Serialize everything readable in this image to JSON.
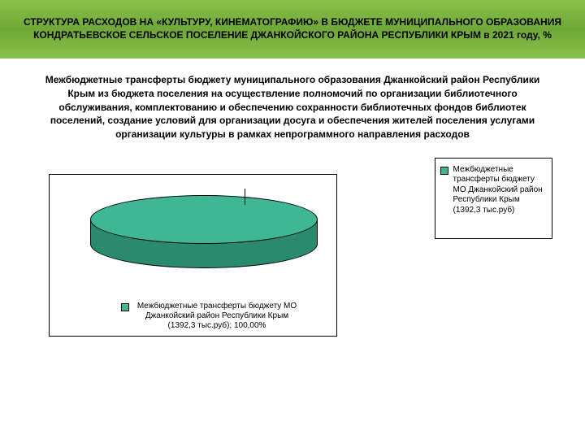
{
  "header": {
    "title": "СТРУКТУРА РАСХОДОВ НА «КУЛЬТУРУ, КИНЕМАТОГРАФИЮ» В БЮДЖЕТЕ МУНИЦИПАЛЬНОГО ОБРАЗОВАНИЯ КОНДРАТЬЕВСКОЕ СЕЛЬСКОЕ ПОСЕЛЕНИЕ ДЖАНКОЙСКОГО РАЙОНА РЕСПУБЛИКИ КРЫМ в 2021 году, %",
    "band_gradient_top": "#8abf4a",
    "band_gradient_mid": "#6fa838"
  },
  "description": "Межбюджетные трансферты бюджету муниципального образования Джанкойский район Республики Крым из бюджета поселения на осуществление полномочий по организации библиотечного обслуживания, комплектованию и обеспечению сохранности библиотечных фондов библиотек поселений, создание условий для организации досуга и обеспечения жителей поселения услугами организации культуры в рамках непрограммного направления расходов",
  "chart": {
    "type": "pie",
    "slices": [
      {
        "label": "Межбюджетные трансферты бюджету МО Джанкойский район Республики Крым (1392,3 тыс.руб)",
        "value": 100.0,
        "percent_label": "100,00%",
        "color_top": "#3fb794",
        "color_side": "#2a8a6e"
      }
    ],
    "border_color": "#000000",
    "background_color": "#ffffff"
  },
  "legend": {
    "items": [
      {
        "swatch": "#3fb794",
        "text": "Межбюджетные трансферты бюджету МО Джанкойский район Республики Крым (1392,3 тыс.руб)"
      }
    ],
    "border_color": "#000000"
  },
  "below_legend": {
    "swatch": "#3fb794",
    "text": "Межбюджетные трансферты бюджету МО Джанкойский район Республики Крым (1392,3 тыс.руб); 100,00%"
  }
}
